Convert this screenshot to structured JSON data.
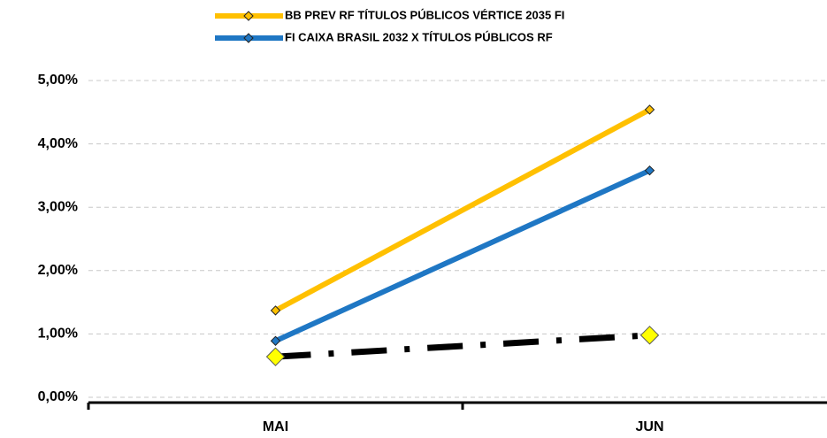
{
  "chart_data": {
    "type": "line",
    "categories": [
      "MAI",
      "JUN"
    ],
    "series": [
      {
        "name": "BB PREV RF TÍTULOS PÚBLICOS VÉRTICE 2035 FI",
        "color": "#ffc000",
        "marker_color": "#ffc000",
        "values": [
          1.37,
          4.54
        ]
      },
      {
        "name": "FI CAIXA BRASIL 2032 X TÍTULOS PÚBLICOS RF",
        "color": "#1f77c4",
        "marker_color": "#1f77c4",
        "values": [
          0.89,
          3.58
        ]
      },
      {
        "color": "#000000",
        "marker_color": "#ffff00",
        "dash": "dash-dot",
        "values": [
          0.64,
          0.98
        ]
      }
    ],
    "ylim": [
      0,
      5
    ],
    "yticks": [
      {
        "value": 0,
        "label": "0,00%"
      },
      {
        "value": 1,
        "label": "1,00%"
      },
      {
        "value": 2,
        "label": "2,00%"
      },
      {
        "value": 3,
        "label": "3,00%"
      },
      {
        "value": 4,
        "label": "4,00%"
      },
      {
        "value": 5,
        "label": "5,00%"
      }
    ],
    "grid": true,
    "legend": "top"
  }
}
